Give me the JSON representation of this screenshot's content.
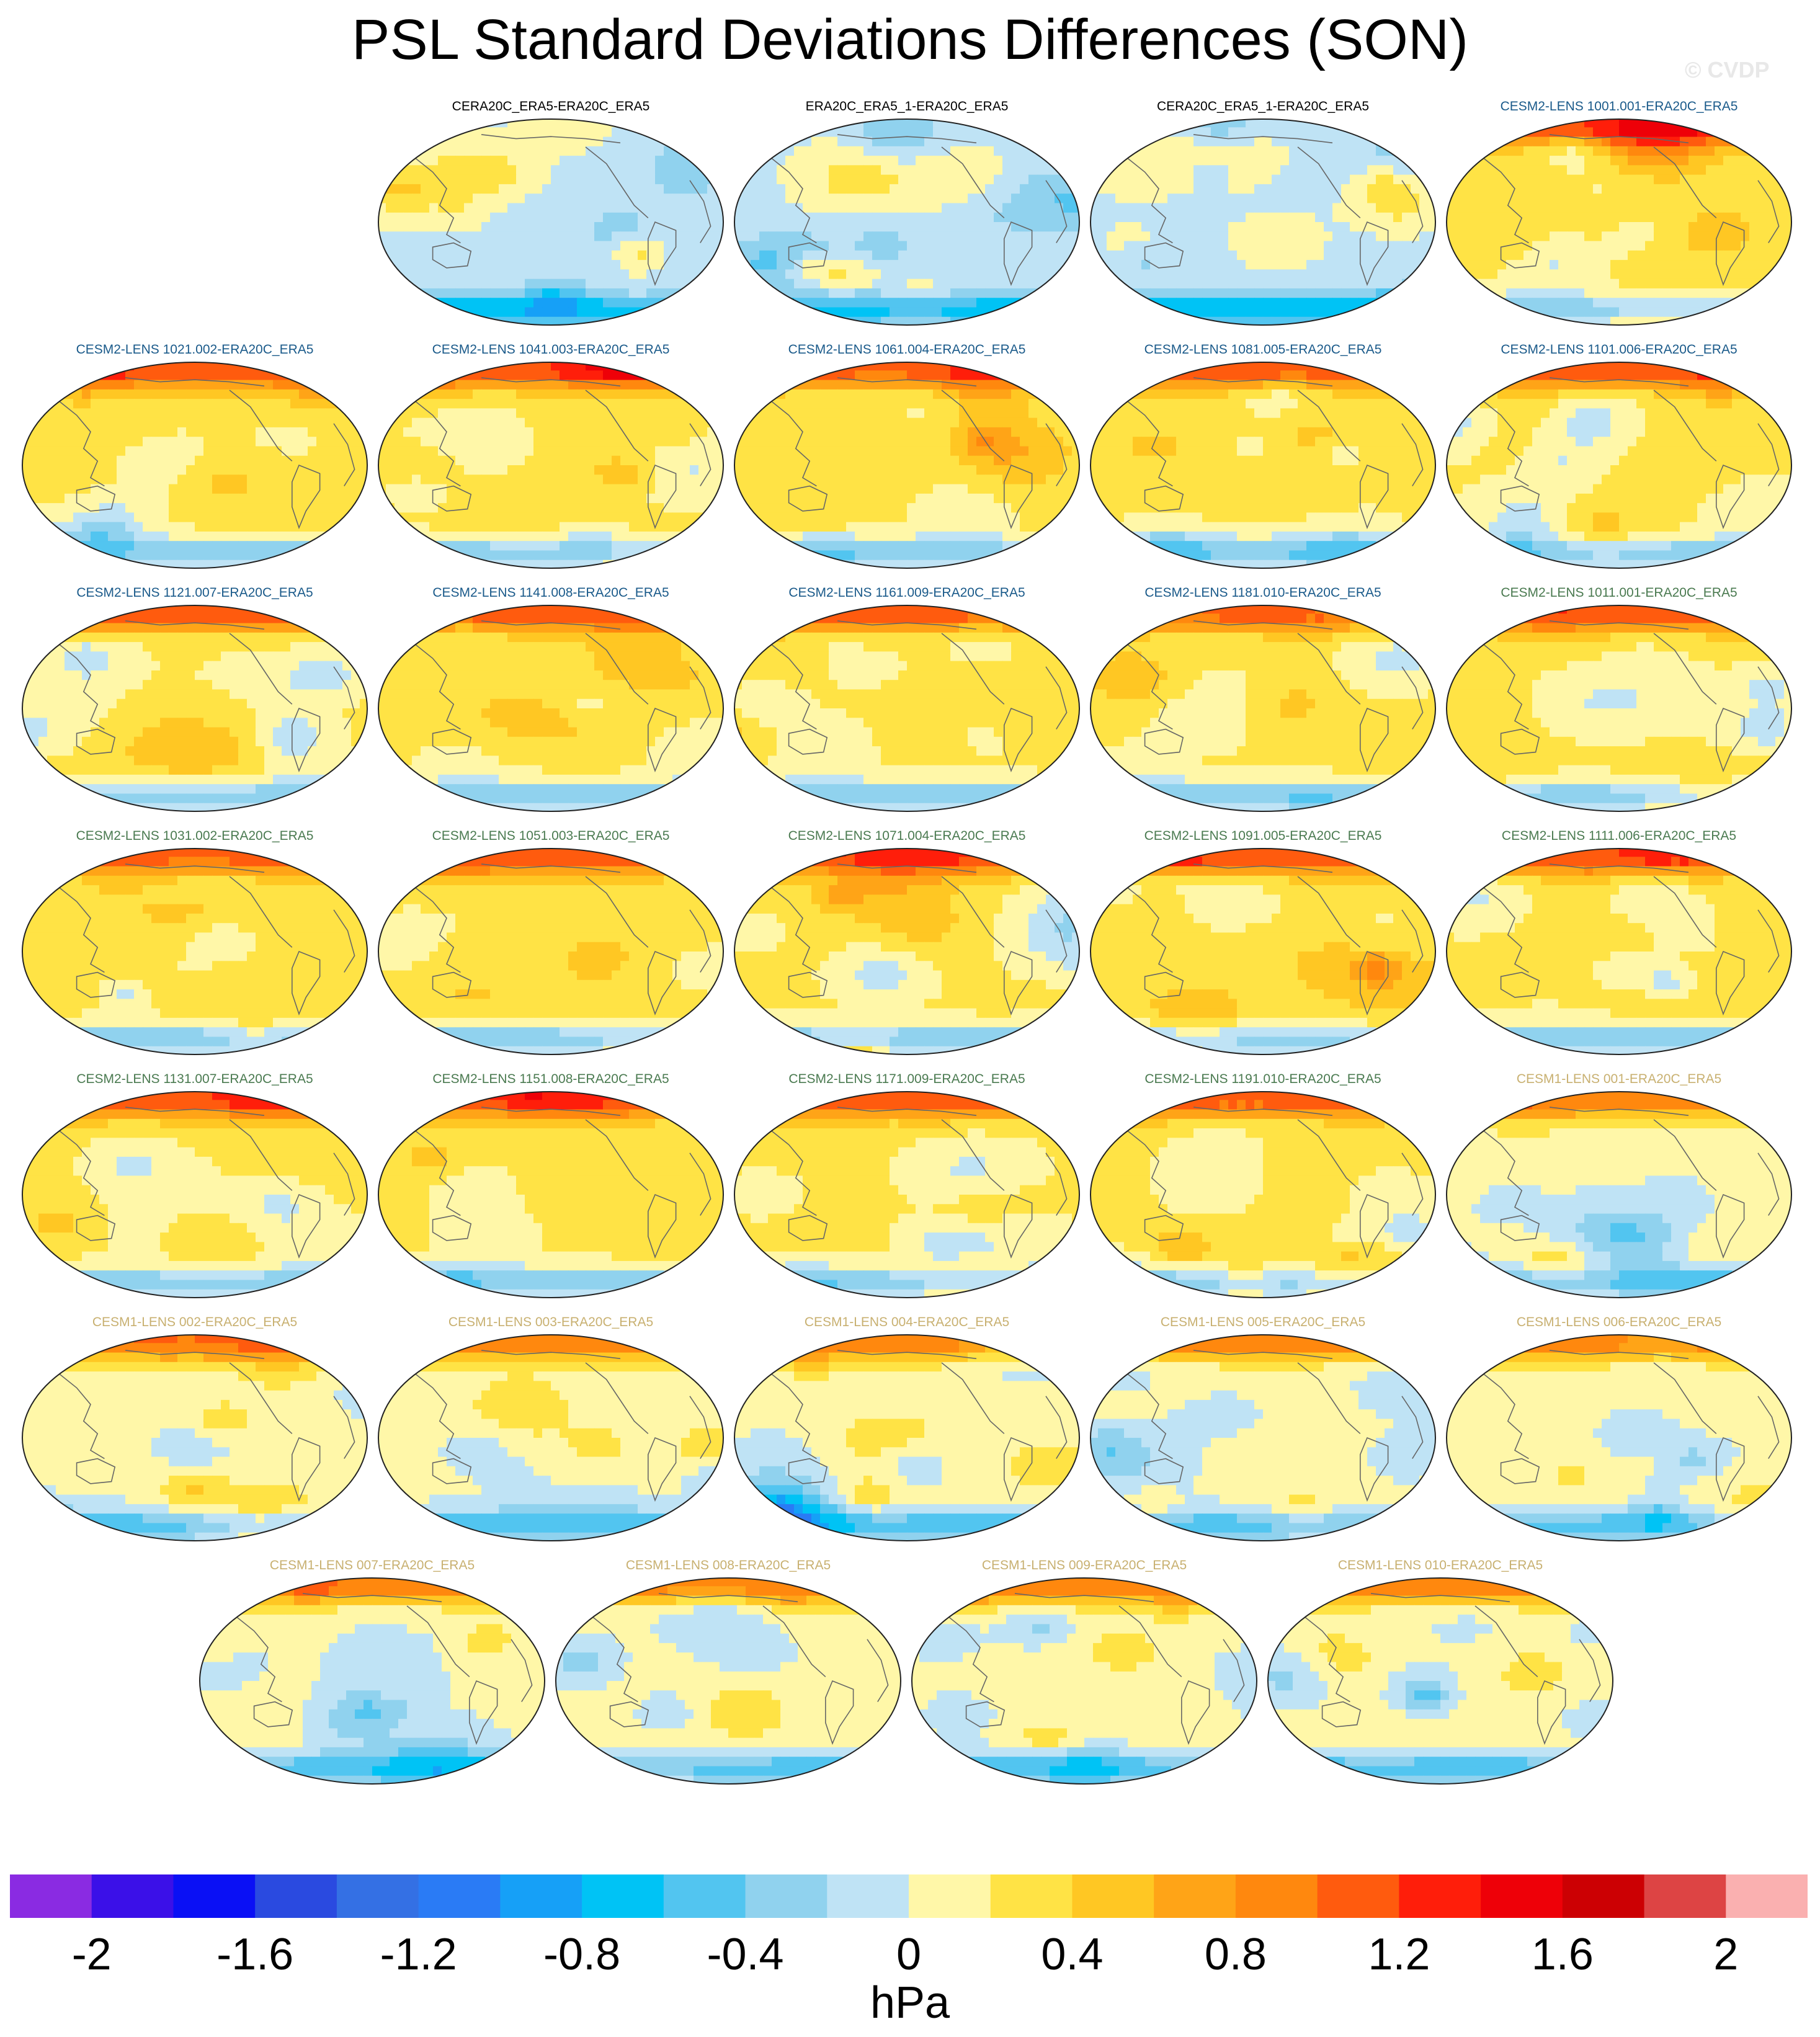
{
  "title": "PSL Standard Deviations Differences (SON)",
  "watermark": "© CVDP",
  "chart_data": {
    "type": "heatmap",
    "title": "PSL Standard Deviations Differences (SON)",
    "units": "hPa",
    "colorbar": {
      "ticks": [
        "-2",
        "-1.6",
        "-1.2",
        "-0.8",
        "-0.4",
        "0",
        "0.4",
        "0.8",
        "1.2",
        "1.6",
        "2"
      ],
      "range": [
        -2.2,
        2.2
      ],
      "colors": [
        "#8a2be2",
        "#3b10e8",
        "#0a10f5",
        "#2a4ae0",
        "#3470e4",
        "#2a7bf5",
        "#16a0f7",
        "#00c3f5",
        "#52c5f0",
        "#90d2ee",
        "#bfe3f5",
        "#fff7a8",
        "#ffe345",
        "#ffc723",
        "#ffa417",
        "#ff880e",
        "#ff5b0e",
        "#ff1e0a",
        "#ee0008",
        "#cc0003",
        "#dd4444",
        "#fab0b0"
      ]
    },
    "panels": [
      {
        "label": "CERA20C_ERA5-ERA20C_ERA5",
        "group": "obs"
      },
      {
        "label": "ERA20C_ERA5_1-ERA20C_ERA5",
        "group": "obs"
      },
      {
        "label": "CERA20C_ERA5_1-ERA20C_ERA5",
        "group": "obs"
      },
      {
        "label": "CESM2-LENS 1001.001-ERA20C_ERA5",
        "group": "cesm2a"
      },
      {
        "label": "CESM2-LENS 1021.002-ERA20C_ERA5",
        "group": "cesm2a"
      },
      {
        "label": "CESM2-LENS 1041.003-ERA20C_ERA5",
        "group": "cesm2a"
      },
      {
        "label": "CESM2-LENS 1061.004-ERA20C_ERA5",
        "group": "cesm2a"
      },
      {
        "label": "CESM2-LENS 1081.005-ERA20C_ERA5",
        "group": "cesm2a"
      },
      {
        "label": "CESM2-LENS 1101.006-ERA20C_ERA5",
        "group": "cesm2a"
      },
      {
        "label": "CESM2-LENS 1121.007-ERA20C_ERA5",
        "group": "cesm2a"
      },
      {
        "label": "CESM2-LENS 1141.008-ERA20C_ERA5",
        "group": "cesm2a"
      },
      {
        "label": "CESM2-LENS 1161.009-ERA20C_ERA5",
        "group": "cesm2a"
      },
      {
        "label": "CESM2-LENS 1181.010-ERA20C_ERA5",
        "group": "cesm2a"
      },
      {
        "label": "CESM2-LENS 1011.001-ERA20C_ERA5",
        "group": "cesm2b"
      },
      {
        "label": "CESM2-LENS 1031.002-ERA20C_ERA5",
        "group": "cesm2b"
      },
      {
        "label": "CESM2-LENS 1051.003-ERA20C_ERA5",
        "group": "cesm2b"
      },
      {
        "label": "CESM2-LENS 1071.004-ERA20C_ERA5",
        "group": "cesm2b"
      },
      {
        "label": "CESM2-LENS 1091.005-ERA20C_ERA5",
        "group": "cesm2b"
      },
      {
        "label": "CESM2-LENS 1111.006-ERA20C_ERA5",
        "group": "cesm2b"
      },
      {
        "label": "CESM2-LENS 1131.007-ERA20C_ERA5",
        "group": "cesm2b"
      },
      {
        "label": "CESM2-LENS 1151.008-ERA20C_ERA5",
        "group": "cesm2b"
      },
      {
        "label": "CESM2-LENS 1171.009-ERA20C_ERA5",
        "group": "cesm2b"
      },
      {
        "label": "CESM2-LENS 1191.010-ERA20C_ERA5",
        "group": "cesm2b"
      },
      {
        "label": "CESM1-LENS 001-ERA20C_ERA5",
        "group": "cesm1"
      },
      {
        "label": "CESM1-LENS 002-ERA20C_ERA5",
        "group": "cesm1"
      },
      {
        "label": "CESM1-LENS 003-ERA20C_ERA5",
        "group": "cesm1"
      },
      {
        "label": "CESM1-LENS 004-ERA20C_ERA5",
        "group": "cesm1"
      },
      {
        "label": "CESM1-LENS 005-ERA20C_ERA5",
        "group": "cesm1"
      },
      {
        "label": "CESM1-LENS 006-ERA20C_ERA5",
        "group": "cesm1"
      },
      {
        "label": "CESM1-LENS 007-ERA20C_ERA5",
        "group": "cesm1"
      },
      {
        "label": "CESM1-LENS 008-ERA20C_ERA5",
        "group": "cesm1"
      },
      {
        "label": "CESM1-LENS 009-ERA20C_ERA5",
        "group": "cesm1"
      },
      {
        "label": "CESM1-LENS 010-ERA20C_ERA5",
        "group": "cesm1"
      }
    ],
    "group_colors": {
      "obs": "#000000",
      "cesm2a": "#1a5a8a",
      "cesm2b": "#4a7a50",
      "cesm1": "#c8b070"
    }
  }
}
